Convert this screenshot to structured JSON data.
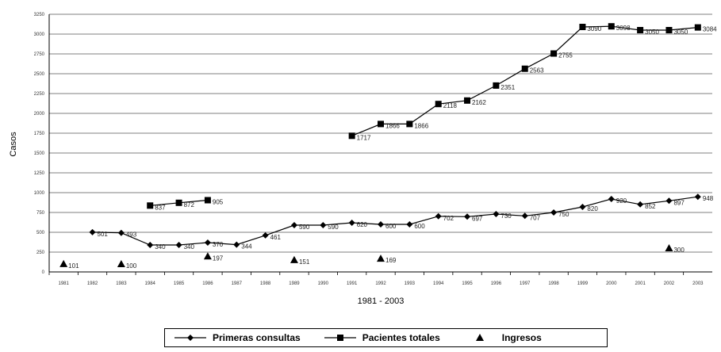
{
  "chart_data": {
    "type": "line",
    "xlabel": "1981 - 2003",
    "ylabel": "Casos",
    "x": [
      1981,
      1982,
      1983,
      1984,
      1985,
      1986,
      1987,
      1988,
      1989,
      1990,
      1991,
      1992,
      1993,
      1994,
      1995,
      1996,
      1997,
      1998,
      1999,
      2000,
      2001,
      2002,
      2003
    ],
    "ylim": [
      0,
      3250
    ],
    "yticks": [
      0,
      250,
      500,
      750,
      1000,
      1250,
      1500,
      1750,
      2000,
      2250,
      2500,
      2750,
      3000,
      3250
    ],
    "grid": true,
    "legend_position": "bottom",
    "series": [
      {
        "name": "Primeras consultas",
        "marker": "diamond",
        "color": "#000000",
        "points": [
          {
            "x": 1982,
            "y": 501,
            "label": "501"
          },
          {
            "x": 1983,
            "y": 493,
            "label": "493"
          },
          {
            "x": 1984,
            "y": 340,
            "label": "340"
          },
          {
            "x": 1985,
            "y": 340,
            "label": "340"
          },
          {
            "x": 1986,
            "y": 370,
            "label": "370"
          },
          {
            "x": 1987,
            "y": 344,
            "label": "344"
          },
          {
            "x": 1988,
            "y": 461,
            "label": "461"
          },
          {
            "x": 1989,
            "y": 590,
            "label": "590"
          },
          {
            "x": 1990,
            "y": 590,
            "label": "590"
          },
          {
            "x": 1991,
            "y": 620,
            "label": "620"
          },
          {
            "x": 1992,
            "y": 600,
            "label": "600"
          },
          {
            "x": 1993,
            "y": 600,
            "label": "600"
          },
          {
            "x": 1994,
            "y": 702,
            "label": "702"
          },
          {
            "x": 1995,
            "y": 697,
            "label": "697"
          },
          {
            "x": 1996,
            "y": 730,
            "label": "730"
          },
          {
            "x": 1997,
            "y": 707,
            "label": "707"
          },
          {
            "x": 1998,
            "y": 750,
            "label": "750"
          },
          {
            "x": 1999,
            "y": 820,
            "label": "820"
          },
          {
            "x": 2000,
            "y": 920,
            "label": "920"
          },
          {
            "x": 2001,
            "y": 852,
            "label": "852"
          },
          {
            "x": 2002,
            "y": 897,
            "label": "897"
          },
          {
            "x": 2003,
            "y": 948,
            "label": "948"
          }
        ]
      },
      {
        "name": "Pacientes totales",
        "marker": "square",
        "color": "#000000",
        "segments": [
          [
            {
              "x": 1984,
              "y": 837,
              "label": "837"
            },
            {
              "x": 1985,
              "y": 872,
              "label": "872"
            },
            {
              "x": 1986,
              "y": 905,
              "label": "905"
            }
          ],
          [
            {
              "x": 1991,
              "y": 1717,
              "label": "1717"
            },
            {
              "x": 1992,
              "y": 1866,
              "label": "1866"
            },
            {
              "x": 1993,
              "y": 1866,
              "label": "1866"
            },
            {
              "x": 1994,
              "y": 2118,
              "label": "2118"
            },
            {
              "x": 1995,
              "y": 2162,
              "label": "2162"
            },
            {
              "x": 1996,
              "y": 2351,
              "label": "2351"
            },
            {
              "x": 1997,
              "y": 2563,
              "label": "2563"
            },
            {
              "x": 1998,
              "y": 2755,
              "label": "2755"
            },
            {
              "x": 1999,
              "y": 3090,
              "label": "3090"
            },
            {
              "x": 2000,
              "y": 3098,
              "label": "3098"
            },
            {
              "x": 2001,
              "y": 3050,
              "label": "3050"
            },
            {
              "x": 2002,
              "y": 3050,
              "label": "3050"
            },
            {
              "x": 2003,
              "y": 3084,
              "label": "3084"
            }
          ]
        ]
      },
      {
        "name": "Ingresos",
        "marker": "triangle",
        "color": "#000000",
        "points": [
          {
            "x": 1981,
            "y": 101,
            "label": "101"
          },
          {
            "x": 1983,
            "y": 100,
            "label": "100"
          },
          {
            "x": 1986,
            "y": 197,
            "label": "197"
          },
          {
            "x": 1989,
            "y": 151,
            "label": "151"
          },
          {
            "x": 1992,
            "y": 169,
            "label": "169"
          },
          {
            "x": 2002,
            "y": 300,
            "label": "300"
          }
        ]
      }
    ]
  }
}
